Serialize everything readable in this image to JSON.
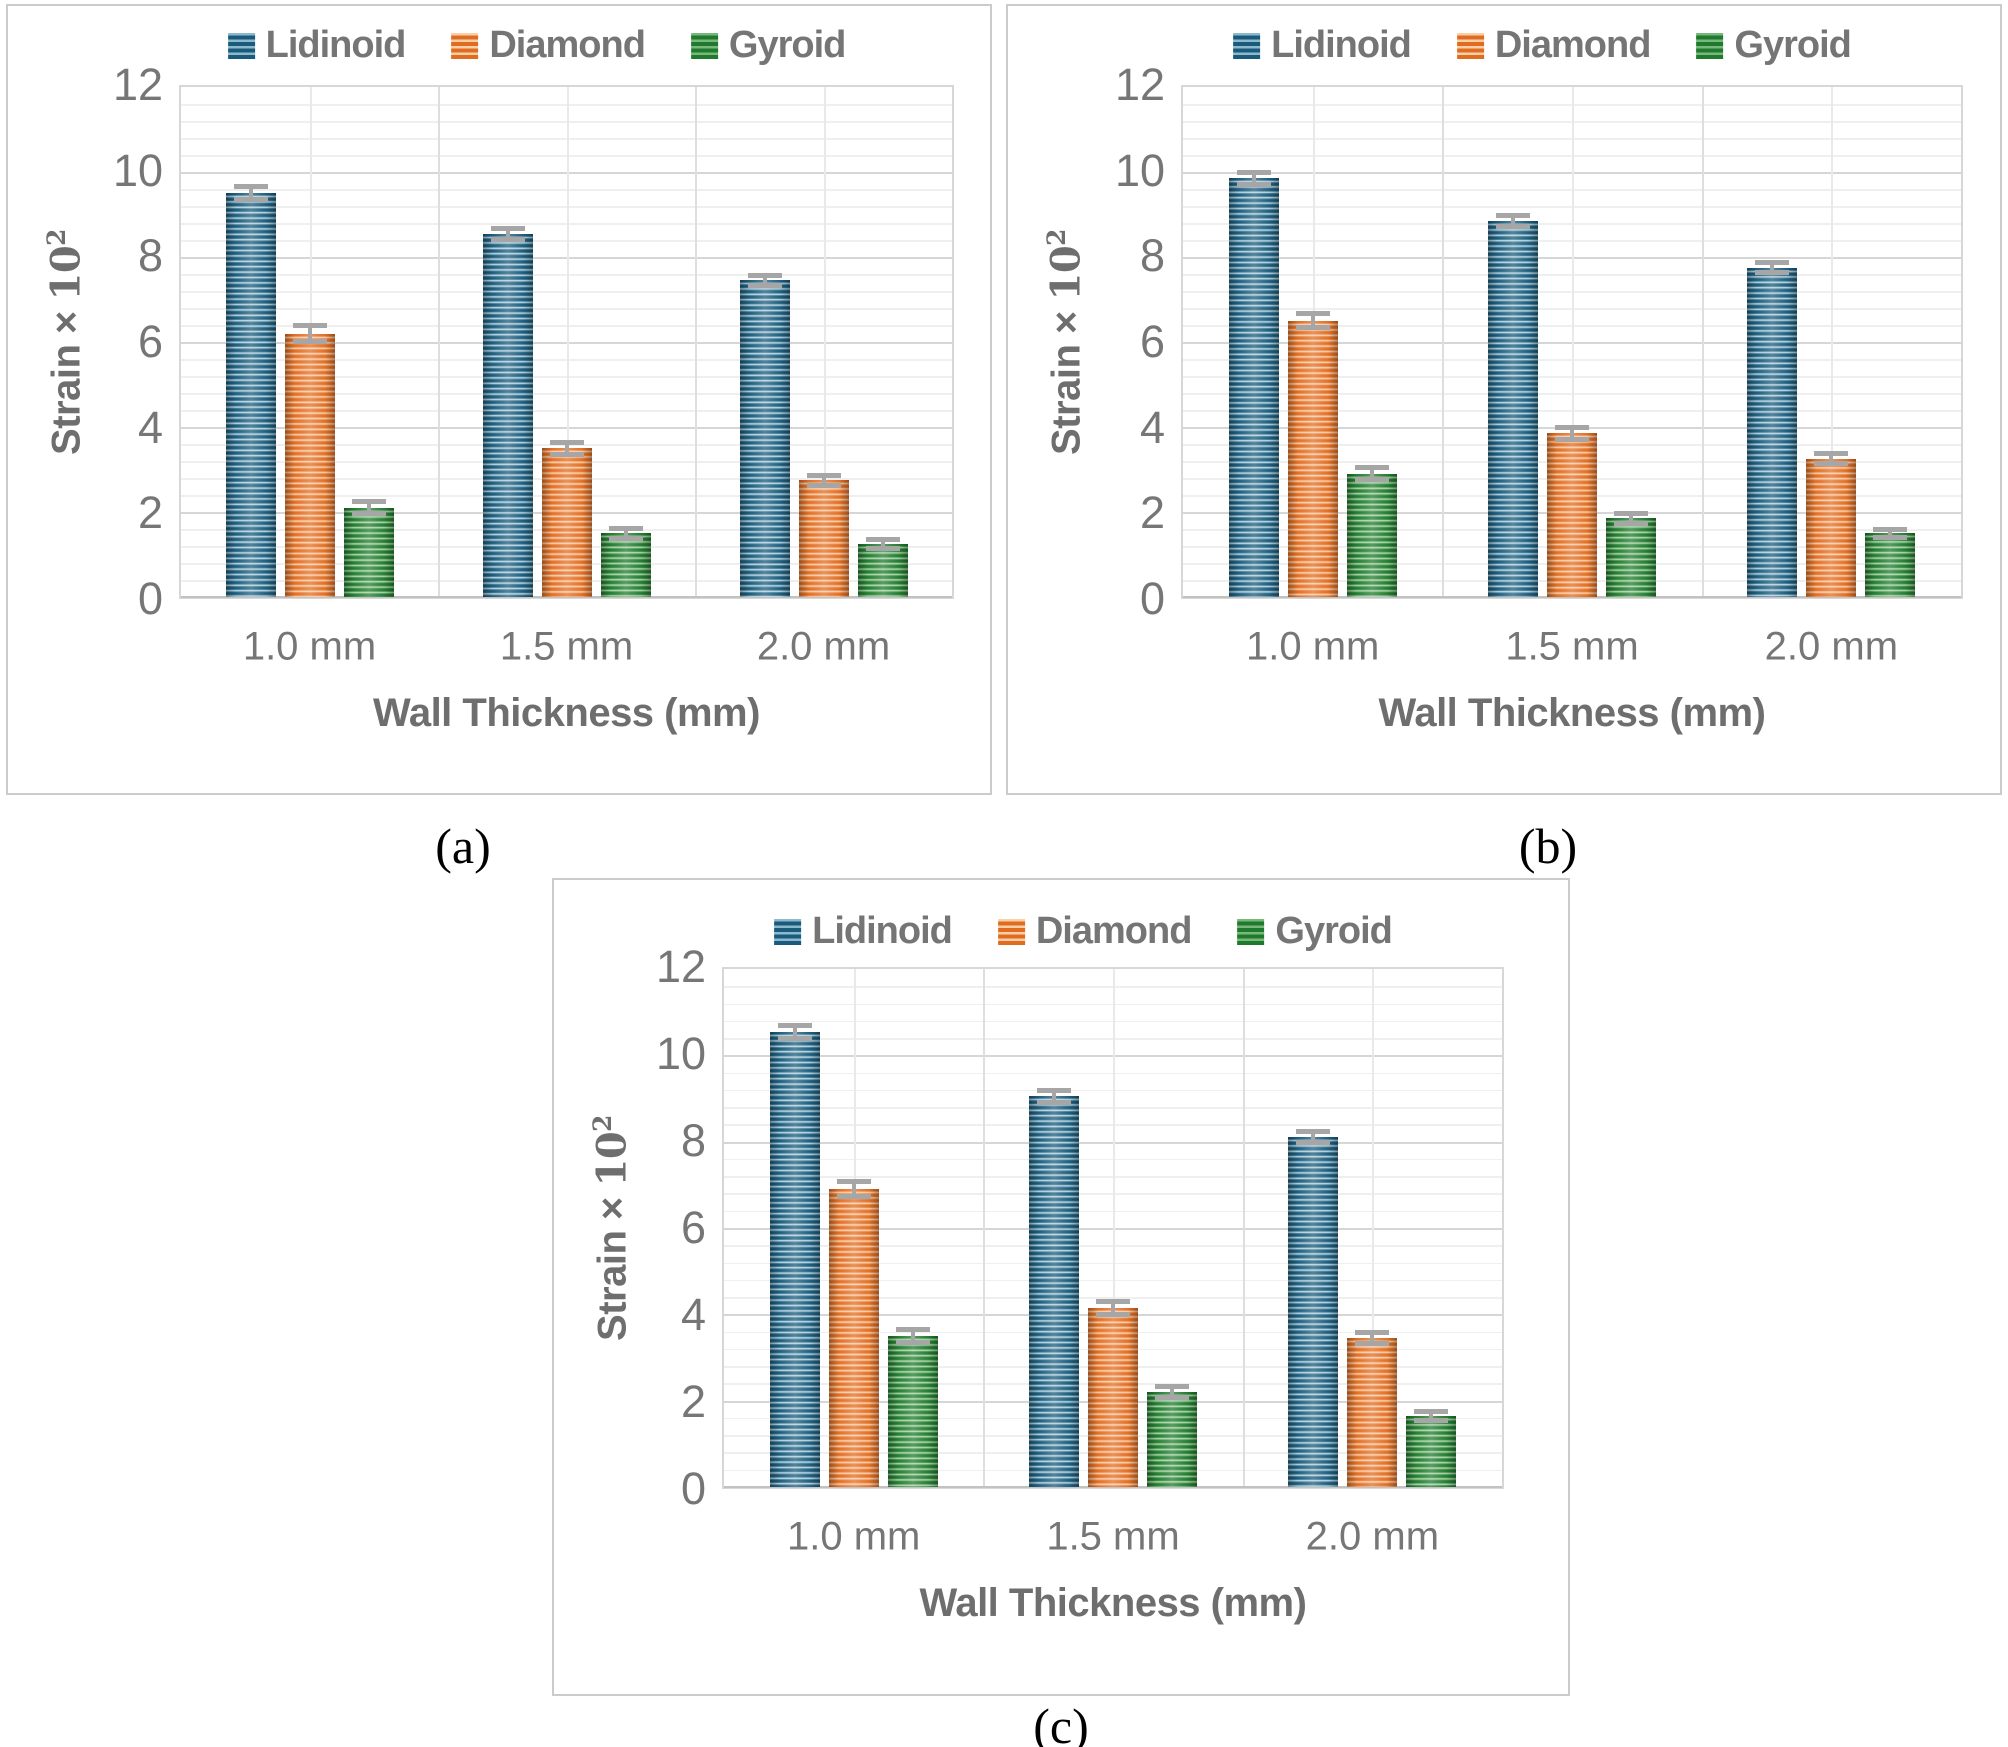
{
  "figure_captions": {
    "a": "(a)",
    "b": "(b)",
    "c": "(c)"
  },
  "styles": {
    "series_colors": {
      "Lidinoid": {
        "dark": "#1a5a7a",
        "mid": "#5f95af",
        "pale": "#cfe5ee",
        "swatch_light": "#8db9ce"
      },
      "Diamond": {
        "dark": "#e06c20",
        "mid": "#f19b5f",
        "pale": "#fbd8bd",
        "swatch_light": "#f9cfa9"
      },
      "Gyroid": {
        "dark": "#1f7a2d",
        "mid": "#5ea763",
        "pale": "#bedfbf",
        "swatch_light": "#79b77c"
      }
    },
    "error_bar_color": "#a6a6a6",
    "tick_text_color": "#767676",
    "title_text_color": "#6e6e6e",
    "grid_minor_color": "#efefef",
    "grid_major_color": "#d6d6d6",
    "plot_border_color": "#d7d7d7",
    "box_border_color": "#cbcbcb",
    "caption_color": "#000000"
  },
  "chart_data": [
    {
      "id": "a",
      "type": "bar",
      "caption": "(a)",
      "title": "",
      "xlabel": "Wall Thickness (mm)",
      "ylabel": "Strain × 10²",
      "ylabel_prefix": "Strain × ",
      "ylabel_base": "10",
      "ylabel_sup": "2",
      "ylim": [
        0,
        12
      ],
      "yticks": [
        12,
        10,
        8,
        6,
        4,
        2,
        0
      ],
      "minor_grid_step": 0.4,
      "major_grid_step": 2,
      "grid": true,
      "legend_position": "top",
      "error_bars": true,
      "bar_pattern": "horizontal-stripes",
      "categories": [
        "1.0 mm",
        "1.5 mm",
        "2.0 mm"
      ],
      "series": [
        {
          "name": "Lidinoid",
          "values": [
            9.5,
            8.55,
            7.45
          ],
          "errors": [
            0.15,
            0.13,
            0.12
          ]
        },
        {
          "name": "Diamond",
          "values": [
            6.2,
            3.5,
            2.75
          ],
          "errors": [
            0.18,
            0.14,
            0.12
          ]
        },
        {
          "name": "Gyroid",
          "values": [
            2.1,
            1.5,
            1.25
          ],
          "errors": [
            0.14,
            0.12,
            0.1
          ]
        }
      ]
    },
    {
      "id": "b",
      "type": "bar",
      "caption": "(b)",
      "title": "",
      "xlabel": "Wall Thickness (mm)",
      "ylabel": "Strain × 10²",
      "ylabel_prefix": "Strain × ",
      "ylabel_base": "10",
      "ylabel_sup": "2",
      "ylim": [
        0,
        12
      ],
      "yticks": [
        12,
        10,
        8,
        6,
        4,
        2,
        0
      ],
      "minor_grid_step": 0.4,
      "major_grid_step": 2,
      "grid": true,
      "legend_position": "top",
      "error_bars": true,
      "bar_pattern": "horizontal-stripes",
      "categories": [
        "1.0 mm",
        "1.5 mm",
        "2.0 mm"
      ],
      "series": [
        {
          "name": "Lidinoid",
          "values": [
            9.85,
            8.85,
            7.75
          ],
          "errors": [
            0.15,
            0.13,
            0.12
          ]
        },
        {
          "name": "Diamond",
          "values": [
            6.5,
            3.85,
            3.25
          ],
          "errors": [
            0.16,
            0.14,
            0.12
          ]
        },
        {
          "name": "Gyroid",
          "values": [
            2.9,
            1.85,
            1.5
          ],
          "errors": [
            0.14,
            0.12,
            0.1
          ]
        }
      ]
    },
    {
      "id": "c",
      "type": "bar",
      "caption": "(c)",
      "title": "",
      "xlabel": "Wall Thickness (mm)",
      "ylabel": "Strain × 10²",
      "ylabel_prefix": "Strain × ",
      "ylabel_base": "10",
      "ylabel_sup": "2",
      "ylim": [
        0,
        12
      ],
      "yticks": [
        12,
        10,
        8,
        6,
        4,
        2,
        0
      ],
      "minor_grid_step": 0.4,
      "major_grid_step": 2,
      "grid": true,
      "legend_position": "top",
      "error_bars": true,
      "bar_pattern": "horizontal-stripes",
      "categories": [
        "1.0 mm",
        "1.5 mm",
        "2.0 mm"
      ],
      "series": [
        {
          "name": "Lidinoid",
          "values": [
            10.55,
            9.05,
            8.1
          ],
          "errors": [
            0.15,
            0.14,
            0.13
          ]
        },
        {
          "name": "Diamond",
          "values": [
            6.9,
            4.15,
            3.45
          ],
          "errors": [
            0.17,
            0.15,
            0.13
          ]
        },
        {
          "name": "Gyroid",
          "values": [
            3.5,
            2.2,
            1.65
          ],
          "errors": [
            0.15,
            0.13,
            0.11
          ]
        }
      ]
    }
  ]
}
